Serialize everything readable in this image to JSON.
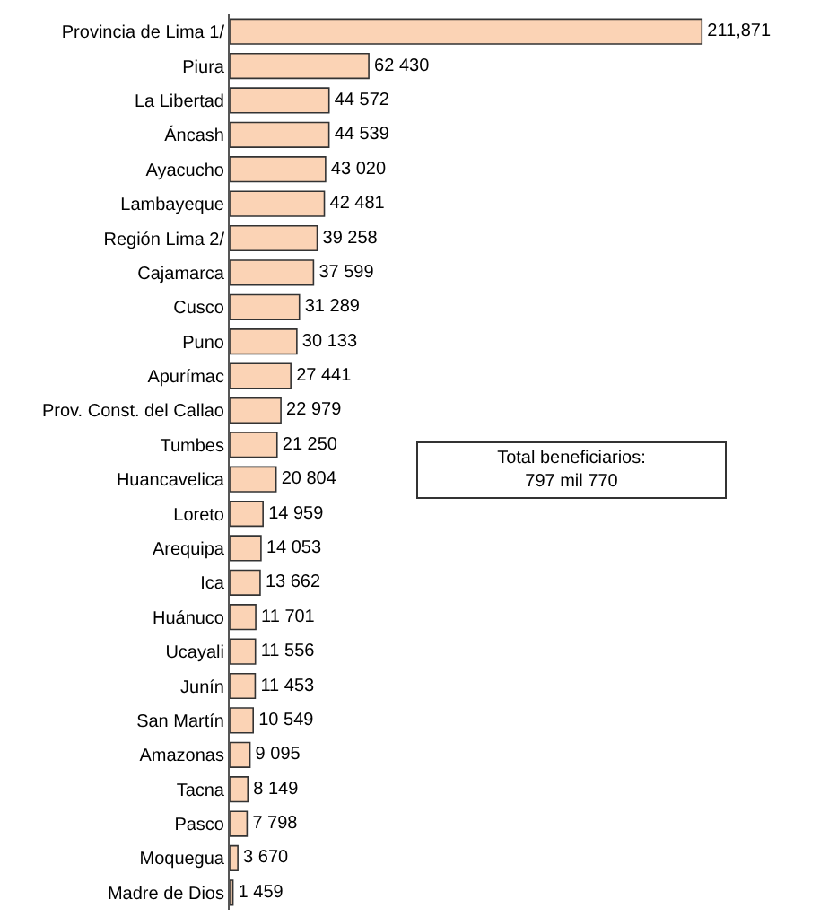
{
  "chart_data": {
    "type": "bar",
    "orientation": "horizontal",
    "categories": [
      "Provincia de Lima 1/",
      "Piura",
      "La Libertad",
      "Áncash",
      "Ayacucho",
      "Lambayeque",
      "Región Lima 2/",
      "Cajamarca",
      "Cusco",
      "Puno",
      "Apurímac",
      "Prov. Const. del Callao",
      "Tumbes",
      "Huancavelica",
      "Loreto",
      "Arequipa",
      "Ica",
      "Huánuco",
      "Ucayali",
      "Junín",
      "San Martín",
      "Amazonas",
      "Tacna",
      "Pasco",
      "Moquegua",
      "Madre de Dios"
    ],
    "values": [
      211871,
      62430,
      44572,
      44539,
      43020,
      42481,
      39258,
      37599,
      31289,
      30133,
      27441,
      22979,
      21250,
      20804,
      14959,
      14053,
      13662,
      11701,
      11556,
      11453,
      10549,
      9095,
      8149,
      7798,
      3670,
      1459
    ],
    "value_labels": [
      "211,871",
      "62 430",
      "44 572",
      "44 539",
      "43 020",
      "42 481",
      "39 258",
      "37 599",
      "31 289",
      "30 133",
      "27 441",
      "22 979",
      "21 250",
      "20 804",
      "14 959",
      "14 053",
      "13 662",
      "11 701",
      "11 556",
      "11 453",
      "10 549",
      "9 095",
      "8 149",
      "7 798",
      "3 670",
      "1 459"
    ],
    "color": "#fbd3b5",
    "tick_labels": "y",
    "annotations": [
      "Total beneficiarios:\n797 mil 770"
    ]
  }
}
